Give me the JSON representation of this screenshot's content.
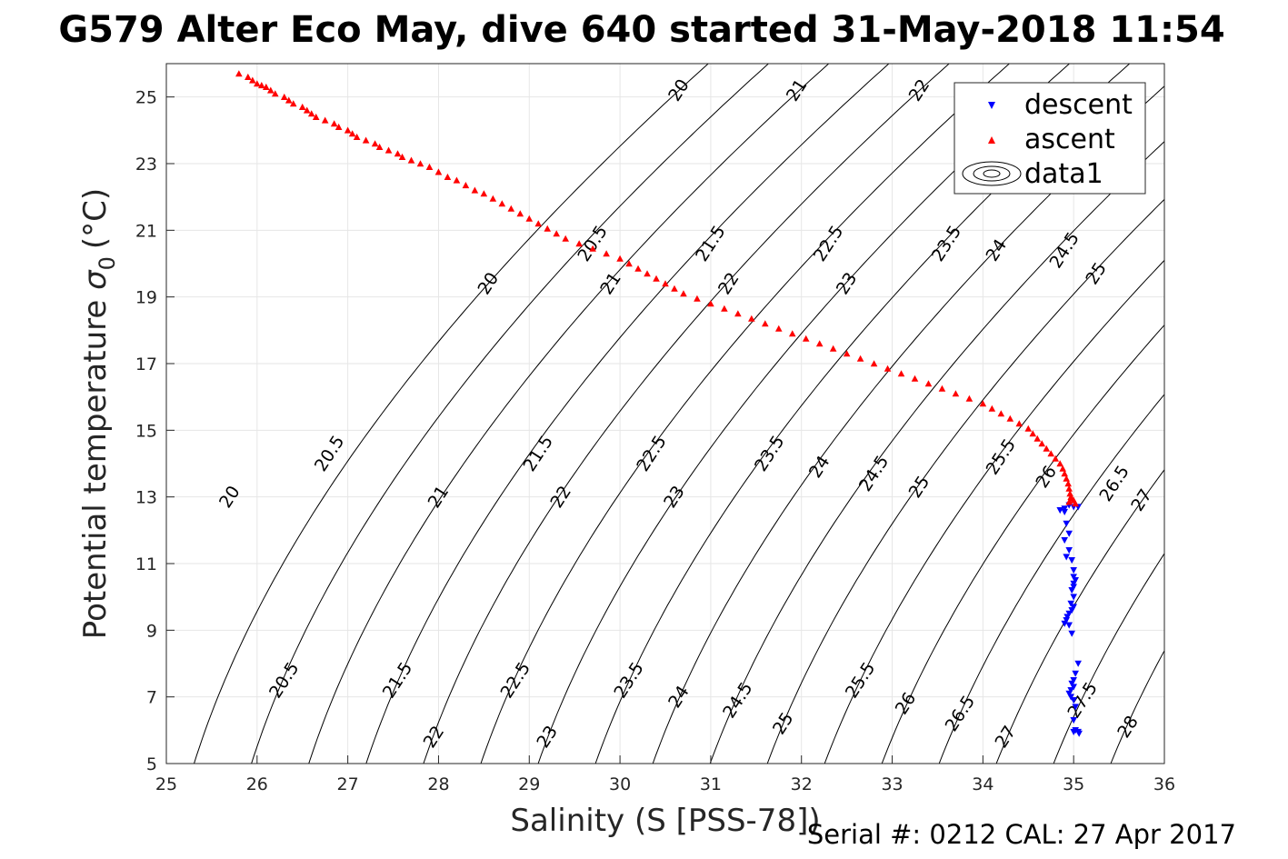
{
  "figure": {
    "title": "G579 Alter Eco May, dive 640 started 31-May-2018 11:54",
    "footer": "Serial #: 0212  CAL: 27 Apr 2017"
  },
  "chart_data": {
    "type": "scatter",
    "title": "G579 Alter Eco May, dive 640 started 31-May-2018 11:54",
    "xlabel": "Salinity (S [PSS-78])",
    "ylabel_main": "Potential temperature",
    "ylabel_sigma": "σ",
    "ylabel_sub": "0",
    "ylabel_unit": "(°C)",
    "xlim": [
      25,
      36
    ],
    "ylim": [
      5,
      26
    ],
    "xticks": [
      "25",
      "26",
      "27",
      "28",
      "29",
      "30",
      "31",
      "32",
      "33",
      "34",
      "35",
      "36"
    ],
    "yticks": [
      "5",
      "7",
      "9",
      "11",
      "13",
      "15",
      "17",
      "19",
      "21",
      "23",
      "25"
    ],
    "grid": true,
    "legend_position": "top-right",
    "legend": [
      "descent",
      "ascent",
      "data1"
    ],
    "contour_levels": [
      20,
      20.5,
      21,
      21.5,
      22,
      22.5,
      23,
      23.5,
      24,
      24.5,
      25,
      25.5,
      26,
      26.5,
      27,
      27.5,
      28
    ],
    "contour_labels": [
      {
        "text": "20",
        "s": 25.7,
        "t": 13.0
      },
      {
        "text": "20",
        "s": 28.55,
        "t": 19.4
      },
      {
        "text": "20",
        "s": 30.65,
        "t": 25.2
      },
      {
        "text": "20.5",
        "s": 26.3,
        "t": 7.5
      },
      {
        "text": "20.5",
        "s": 26.8,
        "t": 14.3
      },
      {
        "text": "20.5",
        "s": 29.7,
        "t": 20.6
      },
      {
        "text": "21",
        "s": 28.0,
        "t": 13.0
      },
      {
        "text": "21",
        "s": 29.9,
        "t": 19.4
      },
      {
        "text": "21",
        "s": 31.95,
        "t": 25.2
      },
      {
        "text": "21.5",
        "s": 27.55,
        "t": 7.5
      },
      {
        "text": "21.5",
        "s": 29.1,
        "t": 14.3
      },
      {
        "text": "21.5",
        "s": 31.0,
        "t": 20.6
      },
      {
        "text": "22",
        "s": 27.95,
        "t": 5.8
      },
      {
        "text": "22",
        "s": 29.35,
        "t": 13.0
      },
      {
        "text": "22",
        "s": 31.2,
        "t": 19.4
      },
      {
        "text": "22",
        "s": 33.3,
        "t": 25.2
      },
      {
        "text": "22.5",
        "s": 28.85,
        "t": 7.5
      },
      {
        "text": "22.5",
        "s": 30.35,
        "t": 14.3
      },
      {
        "text": "22.5",
        "s": 32.3,
        "t": 20.6
      },
      {
        "text": "23",
        "s": 29.2,
        "t": 5.8
      },
      {
        "text": "23",
        "s": 30.6,
        "t": 13.0
      },
      {
        "text": "23",
        "s": 32.5,
        "t": 19.4
      },
      {
        "text": "23.5",
        "s": 30.1,
        "t": 7.5
      },
      {
        "text": "23.5",
        "s": 31.65,
        "t": 14.3
      },
      {
        "text": "23.5",
        "s": 33.6,
        "t": 20.6
      },
      {
        "text": "24",
        "s": 30.65,
        "t": 7.0
      },
      {
        "text": "24",
        "s": 32.2,
        "t": 13.9
      },
      {
        "text": "24",
        "s": 34.15,
        "t": 20.4
      },
      {
        "text": "24.5",
        "s": 31.3,
        "t": 6.9
      },
      {
        "text": "24.5",
        "s": 32.8,
        "t": 13.7
      },
      {
        "text": "24.5",
        "s": 34.9,
        "t": 20.4
      },
      {
        "text": "25",
        "s": 31.8,
        "t": 6.2
      },
      {
        "text": "25",
        "s": 33.3,
        "t": 13.3
      },
      {
        "text": "25",
        "s": 35.25,
        "t": 19.7
      },
      {
        "text": "25.5",
        "s": 32.65,
        "t": 7.5
      },
      {
        "text": "25.5",
        "s": 34.2,
        "t": 14.2
      },
      {
        "text": "26",
        "s": 33.15,
        "t": 6.8
      },
      {
        "text": "26",
        "s": 34.7,
        "t": 13.6
      },
      {
        "text": "26.5",
        "s": 33.75,
        "t": 6.5
      },
      {
        "text": "26.5",
        "s": 35.45,
        "t": 13.4
      },
      {
        "text": "27",
        "s": 34.25,
        "t": 5.8
      },
      {
        "text": "27",
        "s": 35.75,
        "t": 12.9
      },
      {
        "text": "27.5",
        "s": 35.1,
        "t": 6.9
      },
      {
        "text": "28",
        "s": 35.6,
        "t": 6.1
      }
    ],
    "series": [
      {
        "name": "descent",
        "color": "#0000ff",
        "marker": "triangle-down",
        "points": [
          [
            35.05,
            12.7
          ],
          [
            35.0,
            12.7
          ],
          [
            34.95,
            12.75
          ],
          [
            34.9,
            12.65
          ],
          [
            34.85,
            12.6
          ],
          [
            34.9,
            12.55
          ],
          [
            34.92,
            12.2
          ],
          [
            34.95,
            11.9
          ],
          [
            34.9,
            11.7
          ],
          [
            34.95,
            11.4
          ],
          [
            34.92,
            11.2
          ],
          [
            34.98,
            11.1
          ],
          [
            35.0,
            10.8
          ],
          [
            35.0,
            10.6
          ],
          [
            35.02,
            10.5
          ],
          [
            35.0,
            10.4
          ],
          [
            35.0,
            10.3
          ],
          [
            34.98,
            10.2
          ],
          [
            35.0,
            10.0
          ],
          [
            34.97,
            9.8
          ],
          [
            35.0,
            9.7
          ],
          [
            34.98,
            9.6
          ],
          [
            34.95,
            9.5
          ],
          [
            34.93,
            9.4
          ],
          [
            34.92,
            9.3
          ],
          [
            34.9,
            9.2
          ],
          [
            34.95,
            9.15
          ],
          [
            34.98,
            8.9
          ],
          [
            35.05,
            8.0
          ],
          [
            35.02,
            7.7
          ],
          [
            35.0,
            7.5
          ],
          [
            34.98,
            7.4
          ],
          [
            35.0,
            7.3
          ],
          [
            34.97,
            7.2
          ],
          [
            34.95,
            7.1
          ],
          [
            34.97,
            7.0
          ],
          [
            35.0,
            6.9
          ],
          [
            35.02,
            6.7
          ],
          [
            35.0,
            6.3
          ],
          [
            35.02,
            6.0
          ],
          [
            35.05,
            5.95
          ],
          [
            35.0,
            5.95
          ],
          [
            35.06,
            5.9
          ]
        ]
      },
      {
        "name": "ascent",
        "color": "#ff0000",
        "marker": "triangle-up",
        "points": [
          [
            25.8,
            25.7
          ],
          [
            25.9,
            25.6
          ],
          [
            25.95,
            25.5
          ],
          [
            26.0,
            25.4
          ],
          [
            26.05,
            25.35
          ],
          [
            26.1,
            25.3
          ],
          [
            26.15,
            25.2
          ],
          [
            26.2,
            25.1
          ],
          [
            26.3,
            25.0
          ],
          [
            26.35,
            24.9
          ],
          [
            26.4,
            24.8
          ],
          [
            26.5,
            24.7
          ],
          [
            26.55,
            24.6
          ],
          [
            26.6,
            24.5
          ],
          [
            26.65,
            24.4
          ],
          [
            26.75,
            24.3
          ],
          [
            26.85,
            24.2
          ],
          [
            26.9,
            24.1
          ],
          [
            27.0,
            24.0
          ],
          [
            27.05,
            23.9
          ],
          [
            27.1,
            23.8
          ],
          [
            27.2,
            23.7
          ],
          [
            27.3,
            23.6
          ],
          [
            27.35,
            23.5
          ],
          [
            27.45,
            23.4
          ],
          [
            27.55,
            23.3
          ],
          [
            27.6,
            23.2
          ],
          [
            27.7,
            23.1
          ],
          [
            27.8,
            23.0
          ],
          [
            27.9,
            22.9
          ],
          [
            28.0,
            22.75
          ],
          [
            28.1,
            22.6
          ],
          [
            28.2,
            22.5
          ],
          [
            28.3,
            22.35
          ],
          [
            28.4,
            22.2
          ],
          [
            28.5,
            22.1
          ],
          [
            28.6,
            21.95
          ],
          [
            28.7,
            21.8
          ],
          [
            28.8,
            21.65
          ],
          [
            28.9,
            21.5
          ],
          [
            29.0,
            21.35
          ],
          [
            29.1,
            21.2
          ],
          [
            29.2,
            21.05
          ],
          [
            29.3,
            20.9
          ],
          [
            29.4,
            20.75
          ],
          [
            29.55,
            20.6
          ],
          [
            29.7,
            20.45
          ],
          [
            29.85,
            20.3
          ],
          [
            30.0,
            20.15
          ],
          [
            30.1,
            20.0
          ],
          [
            30.2,
            19.85
          ],
          [
            30.3,
            19.7
          ],
          [
            30.4,
            19.55
          ],
          [
            30.5,
            19.4
          ],
          [
            30.6,
            19.25
          ],
          [
            30.7,
            19.1
          ],
          [
            30.85,
            18.95
          ],
          [
            31.0,
            18.8
          ],
          [
            31.15,
            18.65
          ],
          [
            31.3,
            18.5
          ],
          [
            31.45,
            18.35
          ],
          [
            31.6,
            18.2
          ],
          [
            31.75,
            18.05
          ],
          [
            31.9,
            17.9
          ],
          [
            32.05,
            17.75
          ],
          [
            32.2,
            17.6
          ],
          [
            32.35,
            17.45
          ],
          [
            32.5,
            17.3
          ],
          [
            32.65,
            17.15
          ],
          [
            32.8,
            17.0
          ],
          [
            32.95,
            16.85
          ],
          [
            33.1,
            16.7
          ],
          [
            33.25,
            16.55
          ],
          [
            33.4,
            16.4
          ],
          [
            33.55,
            16.25
          ],
          [
            33.7,
            16.1
          ],
          [
            33.85,
            15.95
          ],
          [
            34.0,
            15.8
          ],
          [
            34.1,
            15.65
          ],
          [
            34.2,
            15.5
          ],
          [
            34.3,
            15.35
          ],
          [
            34.4,
            15.2
          ],
          [
            34.5,
            15.05
          ],
          [
            34.55,
            14.9
          ],
          [
            34.6,
            14.75
          ],
          [
            34.65,
            14.6
          ],
          [
            34.7,
            14.45
          ],
          [
            34.75,
            14.3
          ],
          [
            34.8,
            14.15
          ],
          [
            34.85,
            14.0
          ],
          [
            34.88,
            13.85
          ],
          [
            34.9,
            13.7
          ],
          [
            34.92,
            13.55
          ],
          [
            34.94,
            13.4
          ],
          [
            34.95,
            13.25
          ],
          [
            34.96,
            13.1
          ],
          [
            34.97,
            13.0
          ],
          [
            34.98,
            12.95
          ],
          [
            35.0,
            12.9
          ],
          [
            34.95,
            12.85
          ],
          [
            35.02,
            12.8
          ]
        ]
      }
    ]
  }
}
